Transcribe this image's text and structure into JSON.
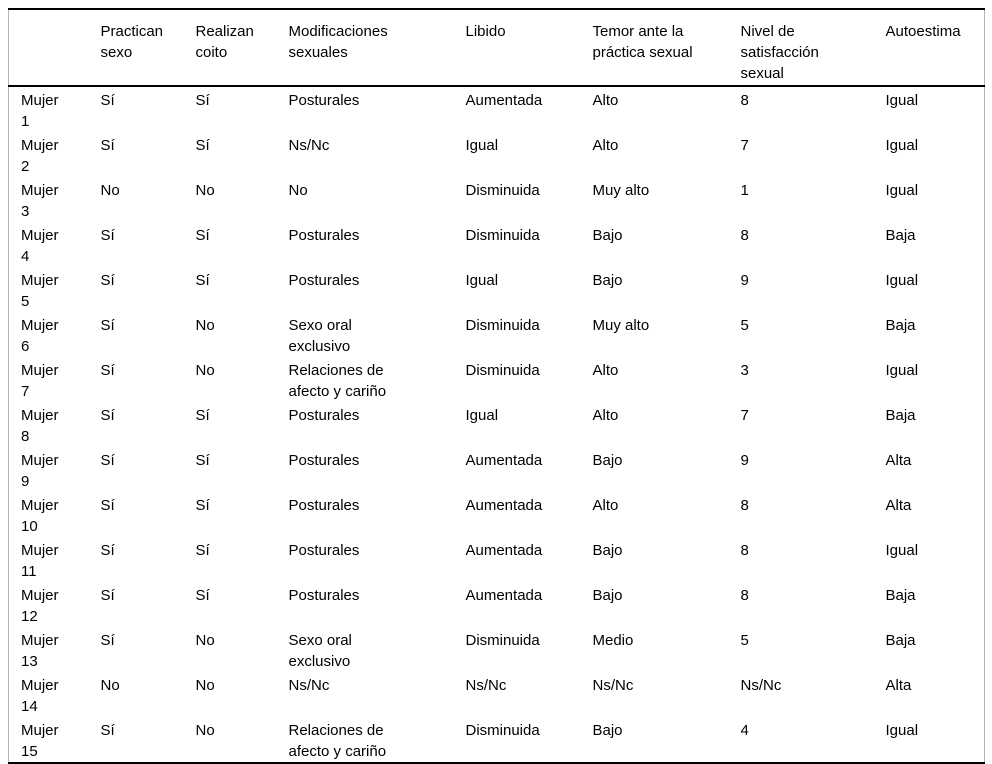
{
  "table": {
    "columns": [
      {
        "label": ""
      },
      {
        "label": "Practican sexo"
      },
      {
        "label": "Realizan coito"
      },
      {
        "label": "Modificaciones sexuales"
      },
      {
        "label": "Libido"
      },
      {
        "label": "Temor ante la práctica sexual"
      },
      {
        "label": "Nivel de satisfacción sexual"
      },
      {
        "label": "Autoestima"
      }
    ],
    "rows": [
      {
        "label": "Mujer 1",
        "cells": [
          "Sí",
          "Sí",
          "Posturales",
          "Aumentada",
          "Alto",
          "8",
          "Igual"
        ]
      },
      {
        "label": "Mujer 2",
        "cells": [
          "Sí",
          "Sí",
          "Ns/Nc",
          "Igual",
          "Alto",
          "7",
          "Igual"
        ]
      },
      {
        "label": "Mujer 3",
        "cells": [
          "No",
          "No",
          "No",
          "Disminuida",
          "Muy alto",
          "1",
          "Igual"
        ]
      },
      {
        "label": "Mujer 4",
        "cells": [
          "Sí",
          "Sí",
          "Posturales",
          "Disminuida",
          "Bajo",
          "8",
          "Baja"
        ]
      },
      {
        "label": "Mujer 5",
        "cells": [
          "Sí",
          "Sí",
          "Posturales",
          "Igual",
          "Bajo",
          "9",
          "Igual"
        ]
      },
      {
        "label": "Mujer 6",
        "cells": [
          "Sí",
          "No",
          "Sexo oral exclusivo",
          "Disminuida",
          "Muy alto",
          "5",
          "Baja"
        ]
      },
      {
        "label": "Mujer 7",
        "cells": [
          "Sí",
          "No",
          "Relaciones de afecto y cariño",
          "Disminuida",
          "Alto",
          "3",
          "Igual"
        ]
      },
      {
        "label": "Mujer 8",
        "cells": [
          "Sí",
          "Sí",
          "Posturales",
          "Igual",
          "Alto",
          "7",
          "Baja"
        ]
      },
      {
        "label": "Mujer 9",
        "cells": [
          "Sí",
          "Sí",
          "Posturales",
          "Aumentada",
          "Bajo",
          "9",
          "Alta"
        ]
      },
      {
        "label": "Mujer 10",
        "cells": [
          "Sí",
          "Sí",
          "Posturales",
          "Aumentada",
          "Alto",
          "8",
          "Alta"
        ]
      },
      {
        "label": "Mujer 11",
        "cells": [
          "Sí",
          "Sí",
          "Posturales",
          "Aumentada",
          "Bajo",
          "8",
          "Igual"
        ]
      },
      {
        "label": "Mujer 12",
        "cells": [
          "Sí",
          "Sí",
          "Posturales",
          "Aumentada",
          "Bajo",
          "8",
          "Baja"
        ]
      },
      {
        "label": "Mujer 13",
        "cells": [
          "Sí",
          "No",
          "Sexo oral exclusivo",
          "Disminuida",
          "Medio",
          "5",
          "Baja"
        ]
      },
      {
        "label": "Mujer 14",
        "cells": [
          "No",
          "No",
          "Ns/Nc",
          "Ns/Nc",
          "Ns/Nc",
          "Ns/Nc",
          "Alta"
        ]
      },
      {
        "label": "Mujer 15",
        "cells": [
          "Sí",
          "No",
          "Relaciones de afecto y cariño",
          "Disminuida",
          "Bajo",
          "4",
          "Igual"
        ]
      }
    ]
  }
}
